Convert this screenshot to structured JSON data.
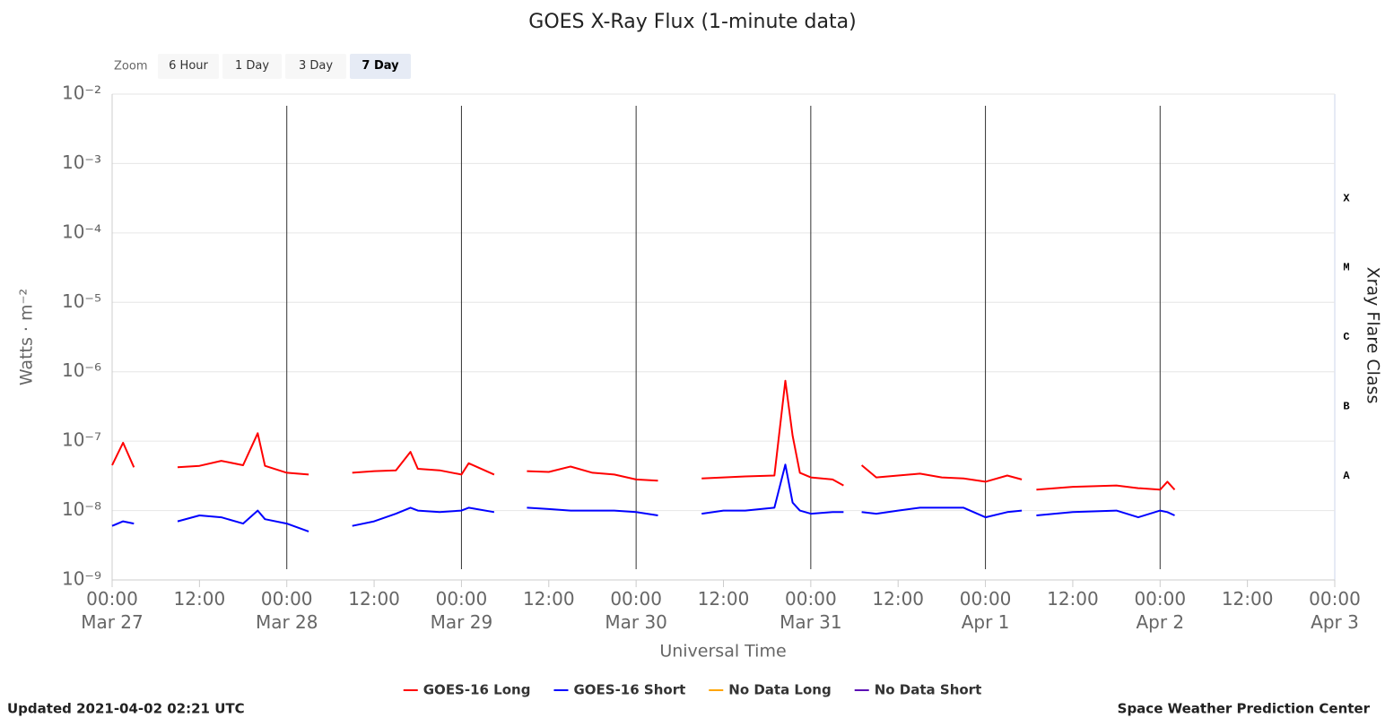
{
  "chart_data": {
    "type": "line",
    "title": "GOES X-Ray Flux (1-minute data)",
    "zoom_label": "Zoom",
    "zoom_buttons": [
      "6 Hour",
      "1 Day",
      "3 Day",
      "7 Day"
    ],
    "selected_zoom": 3,
    "x_label": "Universal Time",
    "y_label": "Watts · m⁻²",
    "y2_label": "Xray Flare Class",
    "log_y": true,
    "grid": true,
    "flare_classes": [
      {
        "label": "A",
        "range": [
          1e-08,
          1e-07
        ]
      },
      {
        "label": "B",
        "range": [
          1e-07,
          1e-06
        ]
      },
      {
        "label": "C",
        "range": [
          1e-06,
          1e-05
        ]
      },
      {
        "label": "M",
        "range": [
          1e-05,
          0.0001
        ]
      },
      {
        "label": "X",
        "range": [
          0.0001,
          0.001
        ]
      }
    ],
    "ylim": [
      1e-09,
      0.01
    ],
    "yticks": [
      {
        "value": 1e-09,
        "label": "10⁻⁹"
      },
      {
        "value": 1e-08,
        "label": "10⁻⁸"
      },
      {
        "value": 1e-07,
        "label": "10⁻⁷"
      },
      {
        "value": 1e-06,
        "label": "10⁻⁶"
      },
      {
        "value": 1e-05,
        "label": "10⁻⁵"
      },
      {
        "value": 0.0001,
        "label": "10⁻⁴"
      },
      {
        "value": 0.001,
        "label": "10⁻³"
      },
      {
        "value": 0.01,
        "label": "10⁻²"
      }
    ],
    "xlim": [
      "Mar 27 00:00",
      "Apr 3 00:00"
    ],
    "xticks": [
      {
        "value": "Mar 27 00:00",
        "label": "00:00\nMar 27"
      },
      {
        "value": "Mar 27 12:00",
        "label": "12:00"
      },
      {
        "value": "Mar 28 00:00",
        "label": "00:00\nMar 28"
      },
      {
        "value": "Mar 28 12:00",
        "label": "12:00"
      },
      {
        "value": "Mar 29 00:00",
        "label": "00:00\nMar 29"
      },
      {
        "value": "Mar 29 12:00",
        "label": "12:00"
      },
      {
        "value": "Mar 30 00:00",
        "label": "00:00\nMar 30"
      },
      {
        "value": "Mar 30 12:00",
        "label": "12:00"
      },
      {
        "value": "Mar 31 00:00",
        "label": "00:00\nMar 31"
      },
      {
        "value": "Mar 31 12:00",
        "label": "12:00"
      },
      {
        "value": "Apr 1 00:00",
        "label": "00:00\nApr 1"
      },
      {
        "value": "Apr 1 12:00",
        "label": "12:00"
      },
      {
        "value": "Apr 2 00:00",
        "label": "00:00\nApr 2"
      },
      {
        "value": "Apr 2 12:00",
        "label": "12:00"
      },
      {
        "value": "Apr 3 00:00",
        "label": "00:00\nApr 3"
      }
    ],
    "x": [
      "Mar 27 00:00",
      "Mar 27 01:30",
      "Mar 27 03:00",
      "Mar 27 06:00",
      "Mar 27 09:00",
      "Mar 27 12:00",
      "Mar 27 15:00",
      "Mar 27 18:00",
      "Mar 27 20:00",
      "Mar 27 21:00",
      "Mar 28 00:00",
      "Mar 28 03:00",
      "Mar 28 06:00",
      "Mar 28 09:00",
      "Mar 28 12:00",
      "Mar 28 15:00",
      "Mar 28 17:00",
      "Mar 28 18:00",
      "Mar 28 21:00",
      "Mar 29 00:00",
      "Mar 29 01:00",
      "Mar 29 04:30",
      "Mar 29 06:00",
      "Mar 29 09:00",
      "Mar 29 12:00",
      "Mar 29 15:00",
      "Mar 29 18:00",
      "Mar 29 21:00",
      "Mar 30 00:00",
      "Mar 30 03:00",
      "Mar 30 06:00",
      "Mar 30 09:00",
      "Mar 30 12:00",
      "Mar 30 15:00",
      "Mar 30 19:00",
      "Mar 30 20:30",
      "Mar 30 21:30",
      "Mar 30 22:30",
      "Mar 31 00:00",
      "Mar 31 03:00",
      "Mar 31 04:30",
      "Mar 31 06:00",
      "Mar 31 07:00",
      "Mar 31 09:00",
      "Mar 31 12:00",
      "Mar 31 15:00",
      "Mar 31 18:00",
      "Mar 31 21:00",
      "Apr 1 00:00",
      "Apr 1 03:00",
      "Apr 1 05:00",
      "Apr 1 06:00",
      "Apr 1 07:00",
      "Apr 1 12:00",
      "Apr 1 18:00",
      "Apr 1 21:00",
      "Apr 2 00:00",
      "Apr 2 01:00",
      "Apr 2 02:00"
    ],
    "series": [
      {
        "name": "GOES-16 Long",
        "color": "#ff0000",
        "values": [
          4.5e-08,
          9.5e-08,
          4.2e-08,
          null,
          4.2e-08,
          4.4e-08,
          5.2e-08,
          4.5e-08,
          1.3e-07,
          4.4e-08,
          3.5e-08,
          3.3e-08,
          null,
          3.5e-08,
          3.7e-08,
          3.8e-08,
          7e-08,
          4e-08,
          3.8e-08,
          3.3e-08,
          4.8e-08,
          3.3e-08,
          null,
          3.7e-08,
          3.6e-08,
          4.3e-08,
          3.5e-08,
          3.3e-08,
          2.8e-08,
          2.7e-08,
          null,
          2.9e-08,
          3e-08,
          3.1e-08,
          3.2e-08,
          7.4e-07,
          1.2e-07,
          3.5e-08,
          3e-08,
          2.8e-08,
          2.3e-08,
          null,
          4.5e-08,
          3e-08,
          3.2e-08,
          3.4e-08,
          3e-08,
          2.9e-08,
          2.6e-08,
          3.2e-08,
          2.8e-08,
          null,
          2e-08,
          2.2e-08,
          2.3e-08,
          2.1e-08,
          2e-08,
          2.6e-08,
          2e-08
        ]
      },
      {
        "name": "GOES-16 Short",
        "color": "#0000ff",
        "values": [
          6e-09,
          7e-09,
          6.5e-09,
          null,
          7e-09,
          8.5e-09,
          8e-09,
          6.5e-09,
          1e-08,
          7.5e-09,
          6.5e-09,
          5e-09,
          null,
          6e-09,
          7e-09,
          9e-09,
          1.1e-08,
          1e-08,
          9.5e-09,
          1e-08,
          1.1e-08,
          9.5e-09,
          null,
          1.1e-08,
          1.05e-08,
          1e-08,
          1e-08,
          1e-08,
          9.5e-09,
          8.5e-09,
          null,
          9e-09,
          1e-08,
          1e-08,
          1.1e-08,
          4.6e-08,
          1.3e-08,
          1e-08,
          9e-09,
          9.5e-09,
          9.5e-09,
          null,
          9.5e-09,
          9e-09,
          1e-08,
          1.1e-08,
          1.1e-08,
          1.1e-08,
          8e-09,
          9.5e-09,
          1e-08,
          null,
          8.5e-09,
          9.5e-09,
          1e-08,
          8e-09,
          1e-08,
          9.5e-09,
          8.5e-09
        ]
      },
      {
        "name": "No Data Long",
        "color": "#ffa500",
        "values": [
          null,
          null,
          null,
          null,
          null,
          null,
          null,
          null,
          null,
          null,
          null,
          null,
          null,
          null,
          null,
          null,
          null,
          null,
          null,
          null,
          null,
          null,
          null,
          null,
          null,
          null,
          null,
          null,
          null,
          null,
          null,
          null,
          null,
          null,
          null,
          null,
          null,
          null,
          null,
          null,
          null,
          null,
          null,
          null,
          null,
          null,
          null,
          null,
          null,
          null,
          null,
          null,
          null,
          null,
          null,
          null,
          null,
          null,
          null
        ]
      },
      {
        "name": "No Data Short",
        "color": "#5b0fb5",
        "values": [
          null,
          null,
          null,
          null,
          null,
          null,
          null,
          null,
          null,
          null,
          null,
          null,
          null,
          null,
          null,
          null,
          null,
          null,
          null,
          null,
          null,
          null,
          null,
          null,
          null,
          null,
          null,
          null,
          null,
          null,
          null,
          null,
          null,
          null,
          null,
          null,
          null,
          null,
          null,
          null,
          null,
          null,
          null,
          null,
          null,
          null,
          null,
          null,
          null,
          null,
          null,
          null,
          null,
          null,
          null,
          null,
          null,
          null,
          null
        ]
      }
    ],
    "footer_left": "Updated 2021-04-02 02:21 UTC",
    "footer_right": "Space Weather Prediction Center"
  }
}
